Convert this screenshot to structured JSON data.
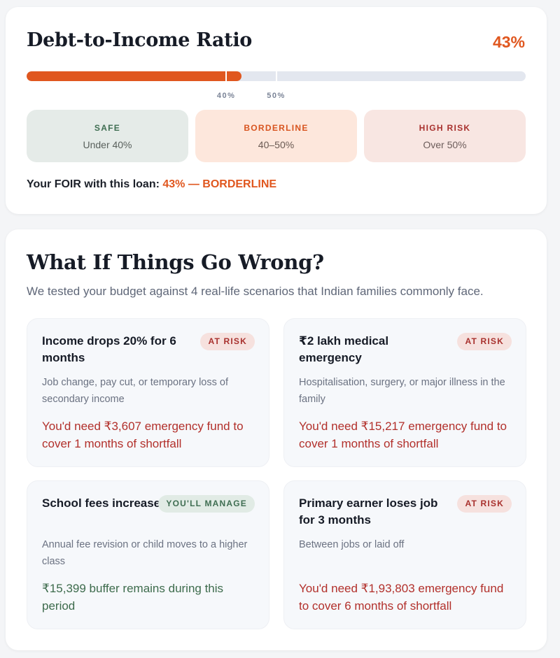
{
  "dti": {
    "title": "Debt-to-Income Ratio",
    "value_text": "43%",
    "progress_percent": 43,
    "markers": [
      {
        "label": "40%",
        "value": 40
      },
      {
        "label": "50%",
        "value": 50
      }
    ],
    "bar_color": "#e0571f",
    "zones": {
      "safe": {
        "title": "SAFE",
        "range": "Under 40%",
        "color": "#3f6e52"
      },
      "borderline": {
        "title": "BORDERLINE",
        "range": "40–50%",
        "color": "#d8541f"
      },
      "high_risk": {
        "title": "HIGH RISK",
        "range": "Over 50%",
        "color": "#a8312e"
      }
    },
    "foir_prefix": "Your FOIR with this loan: ",
    "foir_value": "43% — BORDERLINE"
  },
  "scenarios": {
    "title": "What If Things Go Wrong?",
    "subtitle": "We tested your budget against 4 real-life scenarios that Indian families commonly face.",
    "items": [
      {
        "title": "Income drops 20% for 6 months",
        "badge": "AT RISK",
        "status": "risk",
        "description": "Job change, pay cut, or temporary loss of secondary income",
        "result": "You'd need ₹3,607 emergency fund to cover 1 months of shortfall"
      },
      {
        "title": "₹2 lakh medical emergency",
        "badge": "AT RISK",
        "status": "risk",
        "description": "Hospitalisation, surgery, or major illness in the family",
        "result": "You'd need ₹15,217 emergency fund to cover 1 months of shortfall"
      },
      {
        "title": "School fees increase 30%",
        "badge": "YOU'LL MANAGE",
        "status": "ok",
        "description": "Annual fee revision or child moves to a higher class",
        "result": "₹15,399 buffer remains during this period"
      },
      {
        "title": "Primary earner loses job for 3 months",
        "badge": "AT RISK",
        "status": "risk",
        "description": "Between jobs or laid off",
        "result": "You'd need ₹1,93,803 emergency fund to cover 6 months of shortfall"
      }
    ]
  }
}
